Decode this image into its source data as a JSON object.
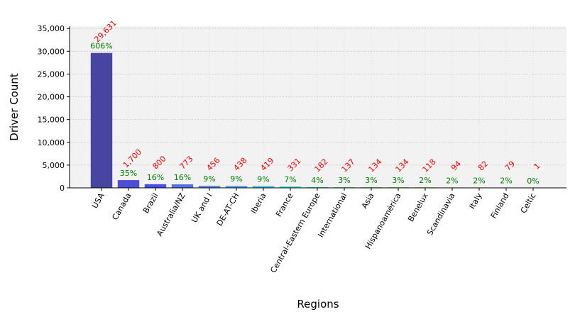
{
  "chart_data": {
    "type": "bar",
    "title": "",
    "xlabel": "Regions",
    "ylabel": "Driver Count",
    "ylim": [
      0,
      35500
    ],
    "yticks": [
      0,
      5000,
      10000,
      15000,
      20000,
      25000,
      30000,
      35000
    ],
    "ytick_labels": [
      "0",
      "5,000",
      "10,000",
      "15,000",
      "20,000",
      "25,000",
      "30,000",
      "35,000"
    ],
    "grid": true,
    "legend": "none",
    "categories": [
      "USA",
      "Canada",
      "Brazil",
      "Australia/NZ",
      "UK and I",
      "DE-AT-CH",
      "Iberia",
      "France",
      "Central-Eastern Europe",
      "International",
      "Asia",
      "Hispanoamérica",
      "Benelux",
      "Scandinavia",
      "Italy",
      "Finland",
      "Celtic"
    ],
    "values": [
      29631,
      1700,
      800,
      773,
      456,
      438,
      419,
      331,
      182,
      137,
      134,
      134,
      118,
      94,
      82,
      79,
      1
    ],
    "value_labels": [
      "29,631",
      "1,700",
      "800",
      "773",
      "456",
      "438",
      "419",
      "331",
      "182",
      "137",
      "134",
      "134",
      "118",
      "94",
      "82",
      "79",
      "1"
    ],
    "percent_labels": [
      "606%",
      "35%",
      "16%",
      "16%",
      "9%",
      "9%",
      "9%",
      "7%",
      "4%",
      "3%",
      "3%",
      "3%",
      "2%",
      "2%",
      "2%",
      "2%",
      "0%"
    ],
    "bar_colors": [
      "#3d3b9c",
      "#4343d4",
      "#3d46e6",
      "#4a68e8",
      "#4f86e8",
      "#44a2ec",
      "#3dc2e6",
      "#3fe0cc",
      "#3fe8a4",
      "#3ae67a",
      "#40e452",
      "#78e23a",
      "#a6e236",
      "#d0d033",
      "#e6ad3a",
      "#e6703a",
      "#d8342c"
    ],
    "value_label_color": "#ff0000",
    "percent_label_color": "#008000",
    "plot_background": "#f2f2f2"
  }
}
